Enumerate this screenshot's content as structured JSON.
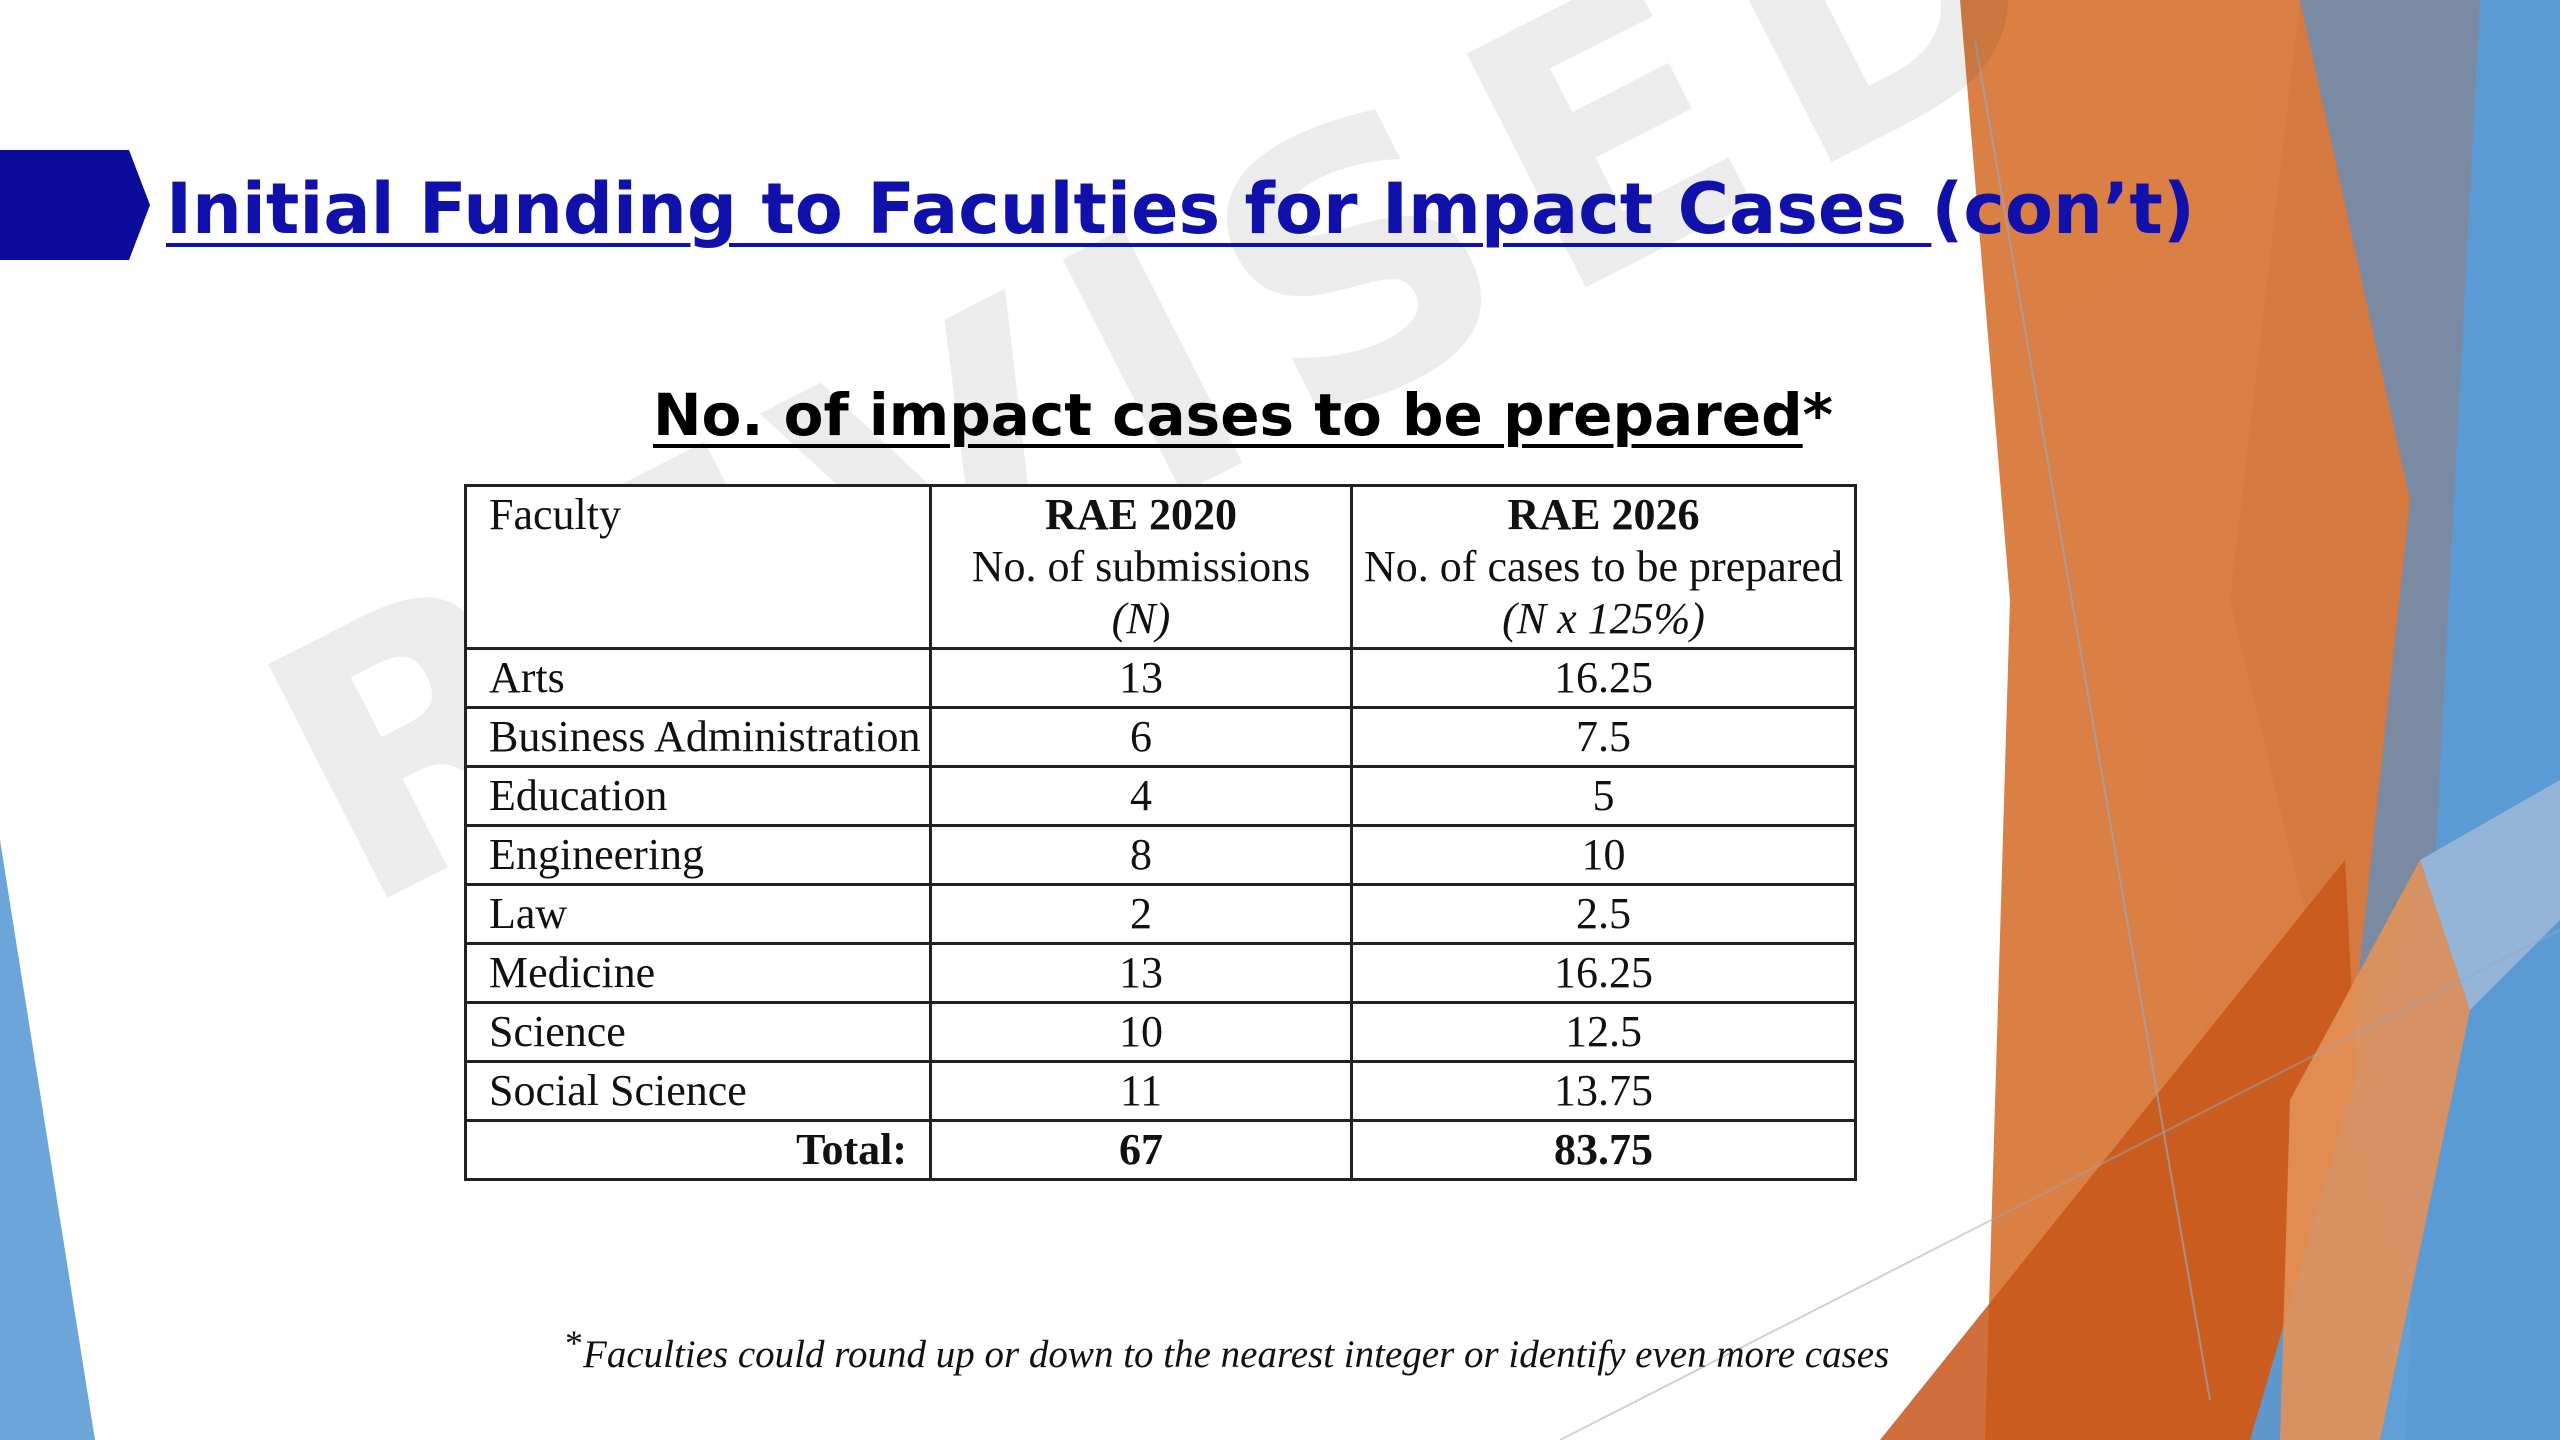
{
  "slide": {
    "title_underlined": "Initial Funding to Faculties for Impact Cases ",
    "title_rest": "(con’t)",
    "watermark": "REVISED"
  },
  "table": {
    "heading": "No. of impact cases to be prepared",
    "heading_mark": "*",
    "header": {
      "faculty": "Faculty",
      "rae2020": {
        "title": "RAE 2020",
        "subtitle": "No. of submissions",
        "formula": "(N)"
      },
      "rae2026": {
        "title": "RAE 2026",
        "subtitle": "No. of cases to be prepared",
        "formula": "(N x 125%)"
      }
    },
    "rows": [
      {
        "faculty": "Arts",
        "rae2020": "13",
        "rae2026": "16.25"
      },
      {
        "faculty": "Business Administration",
        "rae2020": "6",
        "rae2026": "7.5"
      },
      {
        "faculty": "Education",
        "rae2020": "4",
        "rae2026": "5"
      },
      {
        "faculty": "Engineering",
        "rae2020": "8",
        "rae2026": "10"
      },
      {
        "faculty": "Law",
        "rae2020": "2",
        "rae2026": "2.5"
      },
      {
        "faculty": "Medicine",
        "rae2020": "13",
        "rae2026": "16.25"
      },
      {
        "faculty": "Science",
        "rae2020": "10",
        "rae2026": "12.5"
      },
      {
        "faculty": "Social Science",
        "rae2020": "11",
        "rae2026": "13.75"
      }
    ],
    "total": {
      "label": "Total:",
      "rae2020": "67",
      "rae2026": "83.75"
    }
  },
  "footnote": {
    "mark": "*",
    "text": "Faculties could round up or down to the nearest integer or identify even more cases"
  },
  "colors": {
    "title_blue": "#1010aa",
    "title_bar": "#0b0b9c",
    "accent_orange": "#d9793b",
    "accent_blue": "#5b9bd5",
    "slate": "#7a8aa3"
  }
}
